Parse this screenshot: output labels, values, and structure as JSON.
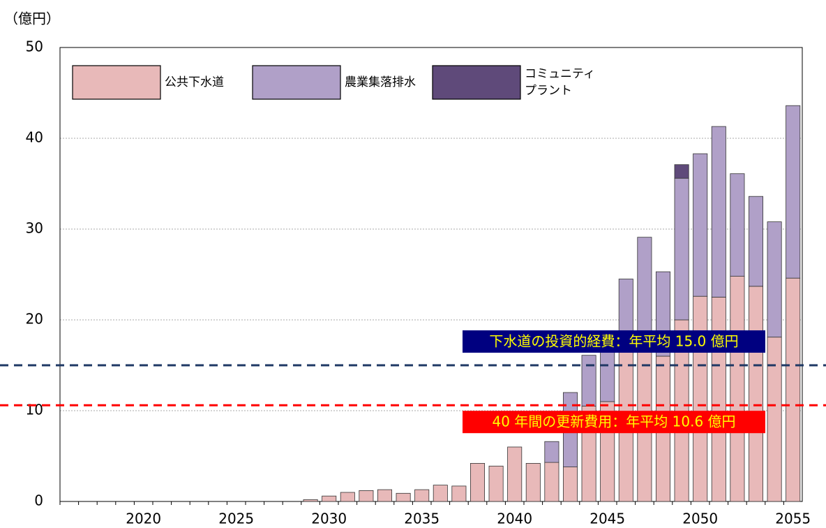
{
  "chart_data": {
    "type": "stacked_bar",
    "y_unit_label": "（億円）",
    "categories": [
      null,
      null,
      null,
      null,
      "2020",
      null,
      null,
      null,
      null,
      "2025",
      null,
      null,
      null,
      null,
      "2030",
      null,
      null,
      null,
      null,
      "2035",
      null,
      null,
      null,
      null,
      "2040",
      null,
      null,
      null,
      null,
      "2045",
      null,
      null,
      null,
      null,
      "2050",
      null,
      null,
      null,
      null,
      "2055"
    ],
    "series": [
      {
        "name": "公共下水道",
        "color": "#e8b9b9",
        "values": [
          null,
          null,
          null,
          null,
          null,
          null,
          null,
          null,
          null,
          null,
          null,
          null,
          null,
          0.2,
          0.6,
          1.0,
          1.2,
          1.3,
          0.9,
          1.3,
          1.8,
          1.7,
          4.2,
          3.9,
          6.0,
          4.2,
          4.3,
          3.8,
          10.5,
          11,
          17,
          18,
          16,
          20,
          22.6,
          22.5,
          24.8,
          23.7,
          18.1,
          24.6
        ]
      },
      {
        "name": "農業集落排水",
        "color": "#b0a0c8",
        "values": [
          null,
          null,
          null,
          null,
          null,
          null,
          null,
          null,
          null,
          null,
          null,
          null,
          null,
          null,
          null,
          null,
          null,
          null,
          null,
          null,
          null,
          null,
          null,
          null,
          null,
          null,
          2.3,
          8.2,
          5.6,
          6,
          7.5,
          11.1,
          9.3,
          15.6,
          15.7,
          18.8,
          11.3,
          9.9,
          12.7,
          19.0
        ]
      },
      {
        "name": "コミュニティ\nプラント",
        "color": "#5f4a7a",
        "values": [
          null,
          null,
          null,
          null,
          null,
          null,
          null,
          null,
          null,
          null,
          null,
          null,
          null,
          null,
          null,
          null,
          null,
          null,
          null,
          null,
          null,
          null,
          null,
          null,
          null,
          null,
          null,
          null,
          null,
          null,
          null,
          null,
          null,
          1.5,
          null,
          null,
          null,
          null,
          null,
          null
        ]
      }
    ],
    "reference_lines": [
      {
        "value": 15.0,
        "label": "下水道の投資的経費：年平均 15.0 億円",
        "color": "#1f3864",
        "box_color": "#000080"
      },
      {
        "value": 10.6,
        "label": "40 年間の更新費用：年平均 10.6 億円",
        "color": "#ff0000",
        "box_color": "#ff0000"
      }
    ],
    "ylim": [
      0,
      50
    ],
    "yticks": [
      0,
      10,
      20,
      30,
      40,
      50
    ],
    "grid": true
  }
}
